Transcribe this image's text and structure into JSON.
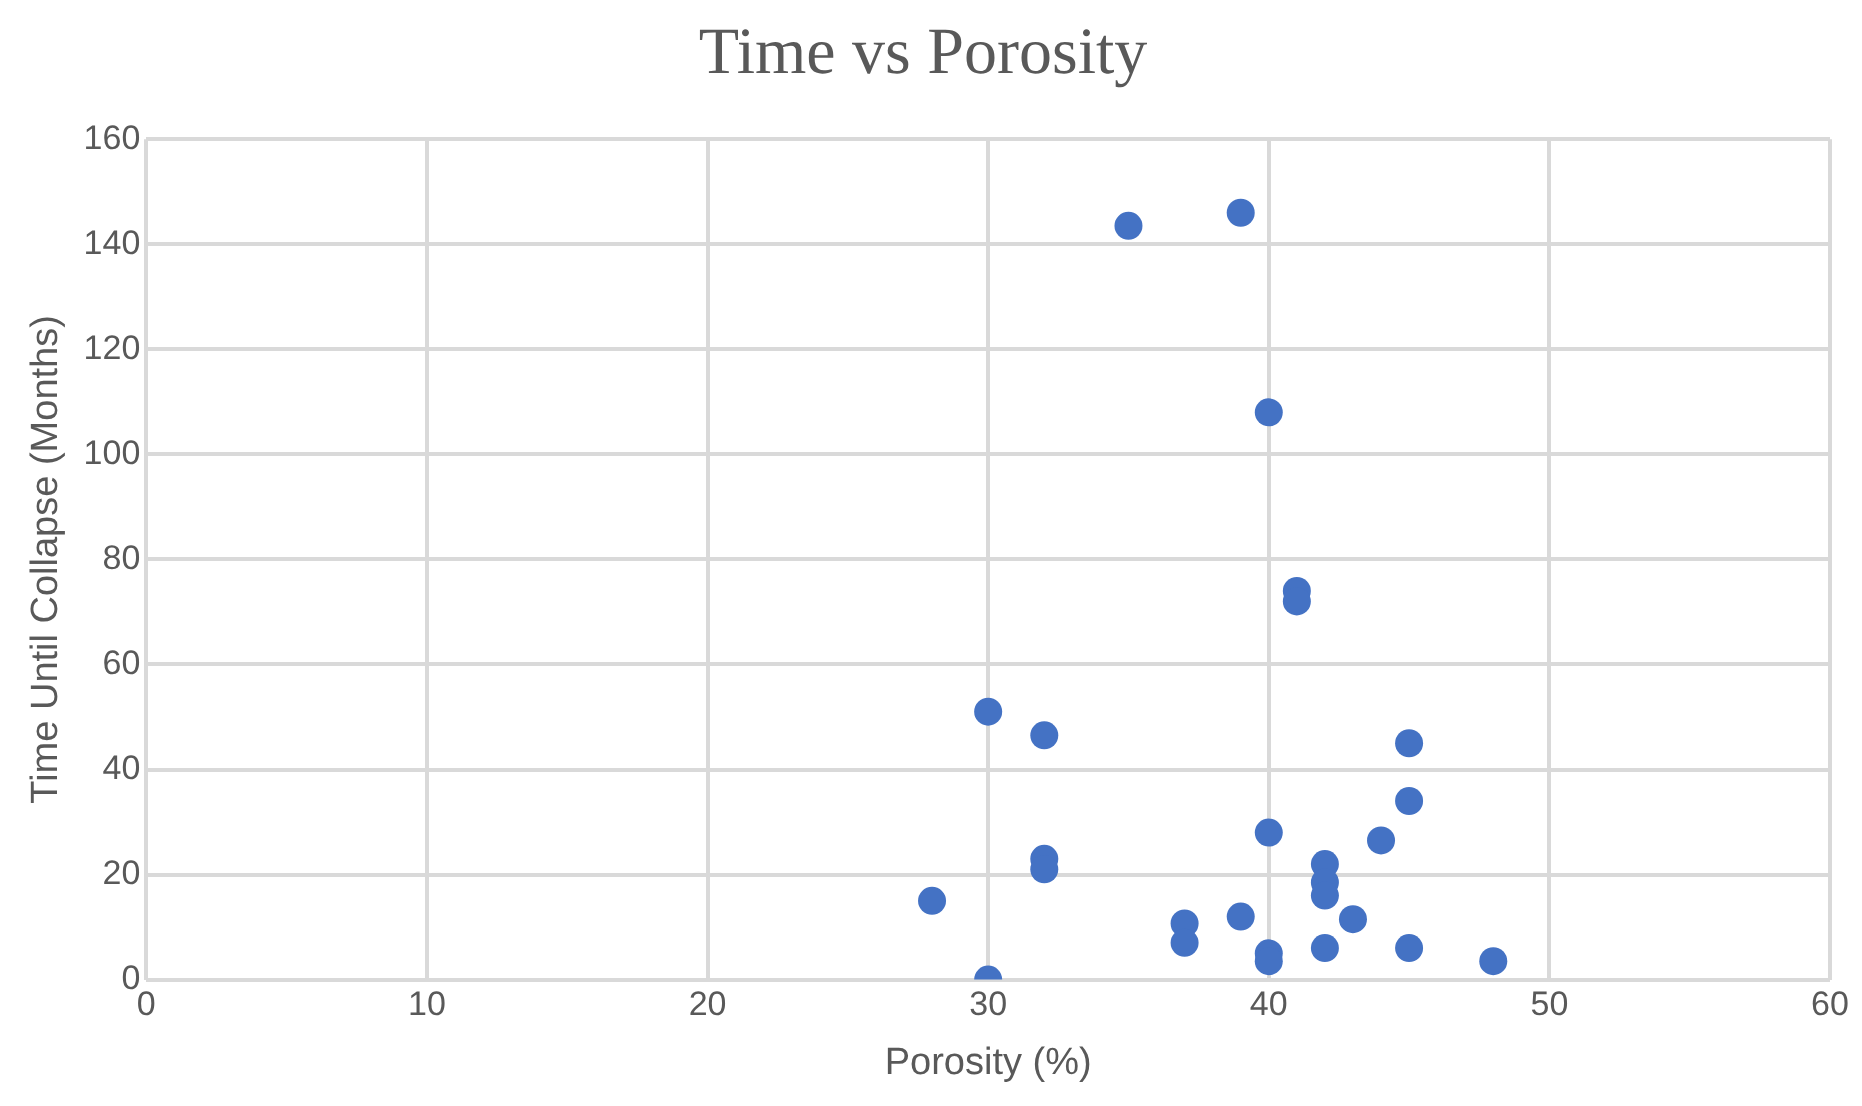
{
  "chart_data": {
    "type": "scatter",
    "title": "Time vs Porosity",
    "xlabel": "Porosity (%)",
    "ylabel": "Time Until Collapse (Months)",
    "xlim": [
      0,
      60
    ],
    "xticks": [
      0,
      10,
      20,
      30,
      40,
      50,
      60
    ],
    "ylim": [
      0,
      160
    ],
    "yticks": [
      0,
      20,
      40,
      60,
      80,
      100,
      120,
      140,
      160
    ],
    "grid": true,
    "legend": false,
    "marker": "circle",
    "series": [
      {
        "color": "#4472c4",
        "x": [
          30,
          35,
          39,
          40,
          41,
          41,
          32,
          45,
          45,
          40,
          44,
          42,
          42,
          42,
          32,
          32,
          28,
          37,
          37,
          39,
          43,
          40,
          40,
          42,
          45,
          48,
          30
        ],
        "values": [
          51,
          143.5,
          146,
          108,
          74,
          72,
          46.5,
          45,
          34,
          28,
          26.5,
          22,
          18.5,
          16,
          23,
          21,
          15,
          10.7,
          7,
          12,
          11.5,
          5,
          3.5,
          6,
          6,
          3.5,
          0
        ]
      }
    ]
  }
}
